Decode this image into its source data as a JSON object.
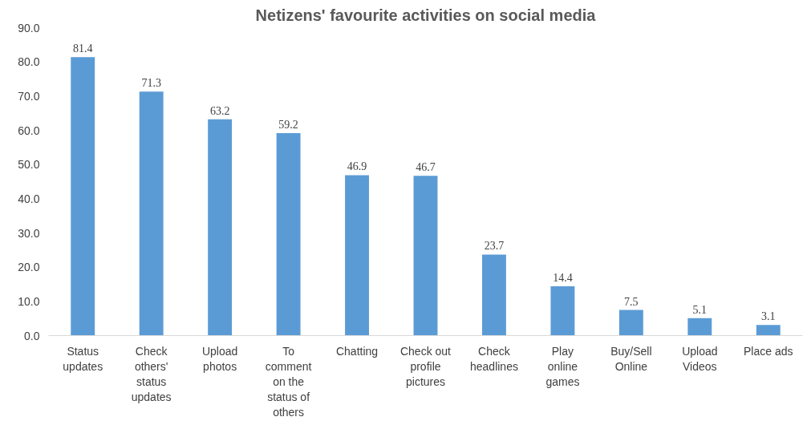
{
  "chart_data": {
    "type": "bar",
    "title": "Netizens' favourite activities on social media",
    "categories": [
      "Status updates",
      "Check others' status updates",
      "Upload photos",
      "To comment on the status of others",
      "Chatting",
      "Check out profile pictures",
      "Check headlines",
      "Play online games",
      "Buy/Sell Online",
      "Upload Videos",
      "Place ads"
    ],
    "values": [
      81.4,
      71.3,
      63.2,
      59.2,
      46.9,
      46.7,
      23.7,
      14.4,
      7.5,
      5.1,
      3.1
    ],
    "color": "#5b9bd5",
    "ylim": [
      0,
      90
    ],
    "yticks": [
      {
        "value": 0,
        "label": "0.0"
      },
      {
        "value": 10,
        "label": "10.0"
      },
      {
        "value": 20,
        "label": "20.0"
      },
      {
        "value": 30,
        "label": "30.0"
      },
      {
        "value": 40,
        "label": "40.0"
      },
      {
        "value": 50,
        "label": "50.0"
      },
      {
        "value": 60,
        "label": "60.0"
      },
      {
        "value": 70,
        "label": "70.0"
      },
      {
        "value": 80,
        "label": "80.0"
      },
      {
        "value": 90,
        "label": "90.0"
      }
    ],
    "data_labels": true,
    "grid": false
  }
}
